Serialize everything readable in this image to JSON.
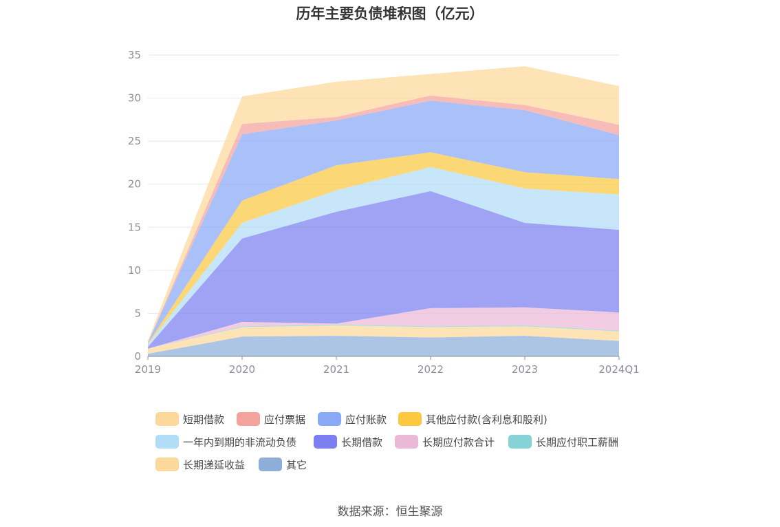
{
  "title": "历年主要负债堆积图（亿元）",
  "source": "数据来源：恒生聚源",
  "chart_data": {
    "type": "area",
    "stacked": true,
    "categories": [
      "2019",
      "2020",
      "2021",
      "2022",
      "2023",
      "2024Q1"
    ],
    "ylim": [
      0,
      35
    ],
    "yticks": [
      0,
      5,
      10,
      15,
      20,
      25,
      30,
      35
    ],
    "grid": true,
    "legend_position": "bottom",
    "series": [
      {
        "name": "其它",
        "color": "#8eaed9",
        "values": [
          0.3,
          2.3,
          2.4,
          2.2,
          2.4,
          1.8
        ]
      },
      {
        "name": "长期递延收益",
        "color": "#fdd89b",
        "values": [
          0.6,
          1.1,
          1.2,
          1.2,
          1.1,
          1.1
        ]
      },
      {
        "name": "长期应付职工薪酬",
        "color": "#86d2d6",
        "values": [
          0.0,
          0.1,
          0.1,
          0.1,
          0.1,
          0.1
        ]
      },
      {
        "name": "长期应付款合计",
        "color": "#ebb9d8",
        "values": [
          0.0,
          0.5,
          0.1,
          2.1,
          2.1,
          2.1
        ]
      },
      {
        "name": "长期借款",
        "color": "#7b7ff0",
        "values": [
          0.2,
          9.7,
          13.0,
          13.6,
          9.8,
          9.6
        ]
      },
      {
        "name": "一年内到期的非流动负债",
        "color": "#b1ddf7",
        "values": [
          0.3,
          1.8,
          2.5,
          2.8,
          4.0,
          4.1
        ]
      },
      {
        "name": "其他应付款(含利息和股利)",
        "color": "#fbc840",
        "values": [
          0.1,
          2.6,
          2.9,
          1.7,
          1.9,
          1.8
        ]
      },
      {
        "name": "应付账款",
        "color": "#89a8f6",
        "values": [
          0.1,
          7.7,
          5.2,
          6.0,
          7.2,
          5.1
        ]
      },
      {
        "name": "应付票据",
        "color": "#f4a29c",
        "values": [
          0.0,
          1.2,
          0.4,
          0.6,
          0.6,
          1.2
        ]
      },
      {
        "name": "短期借款",
        "color": "#fdd89b",
        "values": [
          0.2,
          3.2,
          4.1,
          2.5,
          4.5,
          4.5
        ]
      }
    ]
  },
  "legend": [
    {
      "label": "短期借款",
      "color": "#fdd89b"
    },
    {
      "label": "应付票据",
      "color": "#f4a29c"
    },
    {
      "label": "应付账款",
      "color": "#89a8f6"
    },
    {
      "label": "其他应付款(含利息和股利)",
      "color": "#fbc840"
    },
    {
      "label": "一年内到期的非流动负债",
      "color": "#b1ddf7"
    },
    {
      "label": "长期借款",
      "color": "#7b7ff0"
    },
    {
      "label": "长期应付款合计",
      "color": "#ebb9d8"
    },
    {
      "label": "长期应付职工薪酬",
      "color": "#86d2d6"
    },
    {
      "label": "长期递延收益",
      "color": "#fdd89b"
    },
    {
      "label": "其它",
      "color": "#8eaed9"
    }
  ]
}
